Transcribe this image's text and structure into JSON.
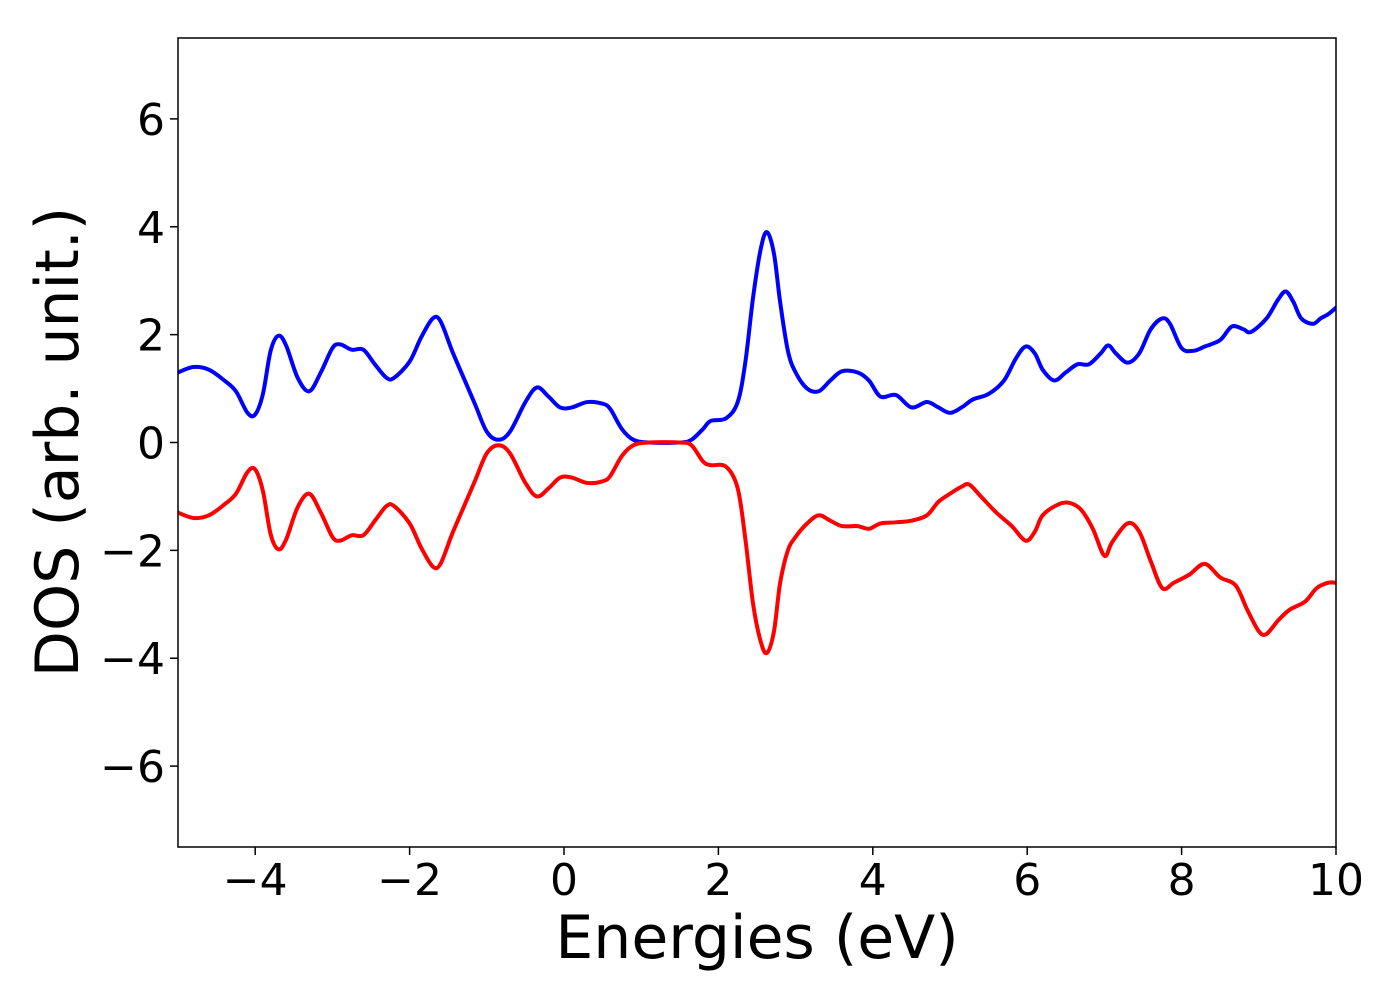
{
  "chart_data": {
    "type": "line",
    "title": "",
    "xlabel": "Energies (eV)",
    "ylabel": "DOS (arb. unit.)",
    "xlim": [
      -5,
      10
    ],
    "ylim": [
      -7.5,
      7.5
    ],
    "grid": false,
    "legend": "none",
    "x_ticks": [
      {
        "value": -4,
        "label": "−4"
      },
      {
        "value": -2,
        "label": "−2"
      },
      {
        "value": 0,
        "label": "0"
      },
      {
        "value": 2,
        "label": "2"
      },
      {
        "value": 4,
        "label": "4"
      },
      {
        "value": 6,
        "label": "6"
      },
      {
        "value": 8,
        "label": "8"
      },
      {
        "value": 10,
        "label": "10"
      }
    ],
    "y_ticks": [
      {
        "value": -6,
        "label": "−6"
      },
      {
        "value": -4,
        "label": "−4"
      },
      {
        "value": -2,
        "label": "−2"
      },
      {
        "value": 0,
        "label": "0"
      },
      {
        "value": 2,
        "label": "2"
      },
      {
        "value": 4,
        "label": "4"
      },
      {
        "value": 6,
        "label": "6"
      }
    ],
    "series": [
      {
        "color": "#0000ff",
        "points": [
          [
            -5.0,
            1.3
          ],
          [
            -4.8,
            1.4
          ],
          [
            -4.6,
            1.35
          ],
          [
            -4.4,
            1.15
          ],
          [
            -4.25,
            0.95
          ],
          [
            -4.1,
            0.55
          ],
          [
            -4.0,
            0.52
          ],
          [
            -3.9,
            0.9
          ],
          [
            -3.8,
            1.7
          ],
          [
            -3.7,
            1.98
          ],
          [
            -3.6,
            1.8
          ],
          [
            -3.45,
            1.2
          ],
          [
            -3.3,
            0.95
          ],
          [
            -3.15,
            1.3
          ],
          [
            -3.0,
            1.75
          ],
          [
            -2.9,
            1.82
          ],
          [
            -2.75,
            1.72
          ],
          [
            -2.6,
            1.72
          ],
          [
            -2.45,
            1.45
          ],
          [
            -2.3,
            1.2
          ],
          [
            -2.2,
            1.2
          ],
          [
            -2.0,
            1.5
          ],
          [
            -1.85,
            1.95
          ],
          [
            -1.7,
            2.3
          ],
          [
            -1.6,
            2.25
          ],
          [
            -1.45,
            1.7
          ],
          [
            -1.3,
            1.2
          ],
          [
            -1.15,
            0.7
          ],
          [
            -1.0,
            0.2
          ],
          [
            -0.85,
            0.05
          ],
          [
            -0.7,
            0.2
          ],
          [
            -0.5,
            0.75
          ],
          [
            -0.35,
            1.02
          ],
          [
            -0.2,
            0.85
          ],
          [
            -0.05,
            0.65
          ],
          [
            0.1,
            0.65
          ],
          [
            0.3,
            0.75
          ],
          [
            0.5,
            0.72
          ],
          [
            0.6,
            0.62
          ],
          [
            0.75,
            0.25
          ],
          [
            0.9,
            0.05
          ],
          [
            1.1,
            0.0
          ],
          [
            1.5,
            0.0
          ],
          [
            1.65,
            0.05
          ],
          [
            1.8,
            0.25
          ],
          [
            1.9,
            0.4
          ],
          [
            2.1,
            0.45
          ],
          [
            2.25,
            0.75
          ],
          [
            2.35,
            1.5
          ],
          [
            2.45,
            2.7
          ],
          [
            2.55,
            3.6
          ],
          [
            2.63,
            3.9
          ],
          [
            2.72,
            3.5
          ],
          [
            2.8,
            2.6
          ],
          [
            2.9,
            1.7
          ],
          [
            3.0,
            1.3
          ],
          [
            3.15,
            1.0
          ],
          [
            3.3,
            0.95
          ],
          [
            3.45,
            1.15
          ],
          [
            3.6,
            1.32
          ],
          [
            3.8,
            1.3
          ],
          [
            3.95,
            1.15
          ],
          [
            4.1,
            0.85
          ],
          [
            4.3,
            0.88
          ],
          [
            4.5,
            0.65
          ],
          [
            4.7,
            0.75
          ],
          [
            4.85,
            0.65
          ],
          [
            5.0,
            0.55
          ],
          [
            5.15,
            0.65
          ],
          [
            5.3,
            0.8
          ],
          [
            5.5,
            0.9
          ],
          [
            5.7,
            1.15
          ],
          [
            5.85,
            1.55
          ],
          [
            5.98,
            1.78
          ],
          [
            6.1,
            1.65
          ],
          [
            6.2,
            1.35
          ],
          [
            6.35,
            1.15
          ],
          [
            6.5,
            1.3
          ],
          [
            6.65,
            1.45
          ],
          [
            6.8,
            1.45
          ],
          [
            6.95,
            1.65
          ],
          [
            7.05,
            1.8
          ],
          [
            7.15,
            1.65
          ],
          [
            7.3,
            1.48
          ],
          [
            7.45,
            1.65
          ],
          [
            7.6,
            2.1
          ],
          [
            7.75,
            2.3
          ],
          [
            7.85,
            2.2
          ],
          [
            8.0,
            1.75
          ],
          [
            8.15,
            1.7
          ],
          [
            8.3,
            1.78
          ],
          [
            8.5,
            1.9
          ],
          [
            8.65,
            2.15
          ],
          [
            8.8,
            2.1
          ],
          [
            8.9,
            2.05
          ],
          [
            9.1,
            2.3
          ],
          [
            9.25,
            2.65
          ],
          [
            9.35,
            2.8
          ],
          [
            9.45,
            2.6
          ],
          [
            9.55,
            2.3
          ],
          [
            9.7,
            2.2
          ],
          [
            9.8,
            2.3
          ],
          [
            9.9,
            2.38
          ],
          [
            10.0,
            2.5
          ]
        ]
      },
      {
        "color": "#ff0000",
        "points": [
          [
            -5.0,
            -1.3
          ],
          [
            -4.8,
            -1.4
          ],
          [
            -4.6,
            -1.35
          ],
          [
            -4.4,
            -1.15
          ],
          [
            -4.25,
            -0.95
          ],
          [
            -4.1,
            -0.55
          ],
          [
            -4.0,
            -0.5
          ],
          [
            -3.9,
            -0.9
          ],
          [
            -3.8,
            -1.7
          ],
          [
            -3.7,
            -1.98
          ],
          [
            -3.6,
            -1.8
          ],
          [
            -3.45,
            -1.2
          ],
          [
            -3.3,
            -0.95
          ],
          [
            -3.15,
            -1.3
          ],
          [
            -3.0,
            -1.75
          ],
          [
            -2.9,
            -1.82
          ],
          [
            -2.75,
            -1.72
          ],
          [
            -2.6,
            -1.72
          ],
          [
            -2.45,
            -1.45
          ],
          [
            -2.3,
            -1.18
          ],
          [
            -2.2,
            -1.18
          ],
          [
            -2.0,
            -1.5
          ],
          [
            -1.85,
            -1.95
          ],
          [
            -1.7,
            -2.3
          ],
          [
            -1.6,
            -2.25
          ],
          [
            -1.45,
            -1.7
          ],
          [
            -1.3,
            -1.2
          ],
          [
            -1.15,
            -0.7
          ],
          [
            -1.0,
            -0.2
          ],
          [
            -0.85,
            -0.05
          ],
          [
            -0.7,
            -0.2
          ],
          [
            -0.5,
            -0.75
          ],
          [
            -0.35,
            -1.0
          ],
          [
            -0.2,
            -0.85
          ],
          [
            -0.05,
            -0.65
          ],
          [
            0.1,
            -0.65
          ],
          [
            0.3,
            -0.75
          ],
          [
            0.5,
            -0.72
          ],
          [
            0.6,
            -0.62
          ],
          [
            0.75,
            -0.25
          ],
          [
            0.9,
            -0.05
          ],
          [
            1.1,
            0.0
          ],
          [
            1.5,
            0.0
          ],
          [
            1.65,
            -0.05
          ],
          [
            1.8,
            -0.35
          ],
          [
            1.9,
            -0.42
          ],
          [
            2.1,
            -0.45
          ],
          [
            2.25,
            -0.85
          ],
          [
            2.35,
            -1.8
          ],
          [
            2.45,
            -3.0
          ],
          [
            2.55,
            -3.7
          ],
          [
            2.63,
            -3.9
          ],
          [
            2.72,
            -3.5
          ],
          [
            2.8,
            -2.6
          ],
          [
            2.9,
            -2.0
          ],
          [
            3.0,
            -1.75
          ],
          [
            3.15,
            -1.5
          ],
          [
            3.3,
            -1.35
          ],
          [
            3.45,
            -1.45
          ],
          [
            3.6,
            -1.55
          ],
          [
            3.8,
            -1.55
          ],
          [
            3.95,
            -1.6
          ],
          [
            4.1,
            -1.5
          ],
          [
            4.3,
            -1.48
          ],
          [
            4.5,
            -1.45
          ],
          [
            4.7,
            -1.35
          ],
          [
            4.85,
            -1.1
          ],
          [
            5.0,
            -0.95
          ],
          [
            5.15,
            -0.82
          ],
          [
            5.25,
            -0.78
          ],
          [
            5.4,
            -1.0
          ],
          [
            5.6,
            -1.3
          ],
          [
            5.8,
            -1.55
          ],
          [
            5.98,
            -1.82
          ],
          [
            6.1,
            -1.65
          ],
          [
            6.2,
            -1.35
          ],
          [
            6.4,
            -1.15
          ],
          [
            6.55,
            -1.12
          ],
          [
            6.7,
            -1.25
          ],
          [
            6.85,
            -1.6
          ],
          [
            7.0,
            -2.1
          ],
          [
            7.1,
            -1.85
          ],
          [
            7.3,
            -1.5
          ],
          [
            7.45,
            -1.65
          ],
          [
            7.6,
            -2.2
          ],
          [
            7.75,
            -2.7
          ],
          [
            7.9,
            -2.6
          ],
          [
            8.1,
            -2.45
          ],
          [
            8.3,
            -2.25
          ],
          [
            8.5,
            -2.5
          ],
          [
            8.7,
            -2.65
          ],
          [
            8.85,
            -3.1
          ],
          [
            9.0,
            -3.5
          ],
          [
            9.1,
            -3.55
          ],
          [
            9.25,
            -3.3
          ],
          [
            9.4,
            -3.1
          ],
          [
            9.6,
            -2.95
          ],
          [
            9.75,
            -2.7
          ],
          [
            9.9,
            -2.6
          ],
          [
            10.0,
            -2.6
          ]
        ]
      }
    ]
  }
}
